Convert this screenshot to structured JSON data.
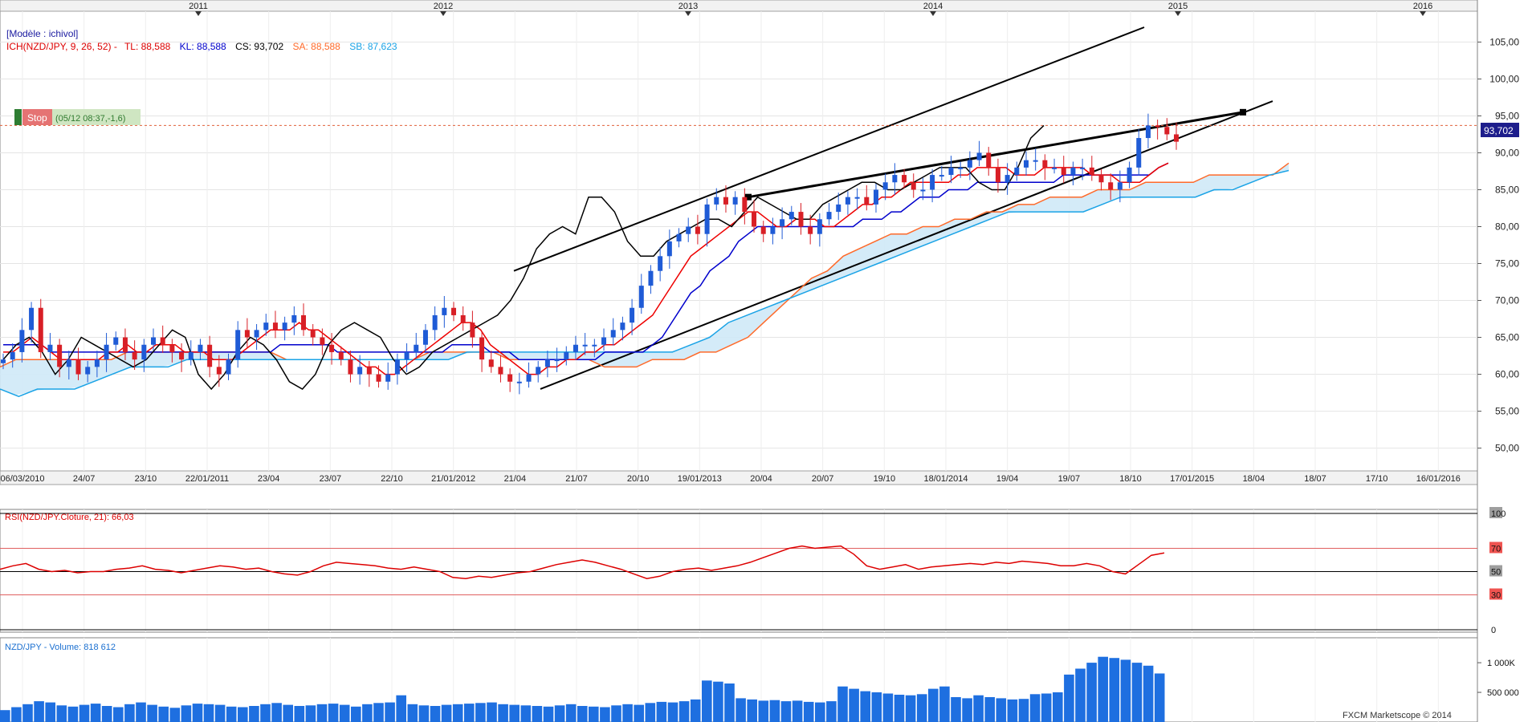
{
  "legend": {
    "model": "[Modèle : ichivol]",
    "ich_prefix": "ICH(NZD/JPY, 9, 26, 52) -",
    "tl": "TL: 88,588",
    "kl": "KL: 88,588",
    "cs": "CS: 93,702",
    "sa": "SA: 88,588",
    "sb": "SB: 87,623"
  },
  "colors": {
    "tl": "#ee0000",
    "kl": "#0000cc",
    "cs": "#000000",
    "sa": "#ff6a2a",
    "sb": "#1aa3e6",
    "cloud": "#cfe9f7",
    "rsi": "#dd0000",
    "volume": "#1e6fe0",
    "up_candle": "#1f5bd6",
    "down_candle": "#d81f26"
  },
  "stop_badge": {
    "label": "Stop",
    "info": "(05/12 08:37,-1,6)"
  },
  "last_price_tag": "93,702",
  "footer": "FXCM Marketscope © 2014",
  "chart_data": [
    {
      "type": "line",
      "subtype": "candlestick-ichimoku",
      "title": "NZD/JPY",
      "xaxis_top_years": [
        "2011",
        "2012",
        "2013",
        "2014",
        "2015",
        "2016"
      ],
      "xaxis_bottom_ticks": [
        "06/03/2010",
        "24/07",
        "23/10",
        "22/01/2011",
        "23/04",
        "23/07",
        "22/10",
        "21/01/2012",
        "21/04",
        "21/07",
        "20/10",
        "19/01/2013",
        "20/04",
        "20/07",
        "19/10",
        "18/01/2014",
        "19/04",
        "19/07",
        "18/10",
        "17/01/2015",
        "18/04",
        "18/07",
        "17/10",
        "16/01/2016"
      ],
      "y_ticks": [
        "50,00",
        "55,00",
        "60,00",
        "65,00",
        "70,00",
        "75,00",
        "80,00",
        "85,00",
        "90,00",
        "95,00",
        "100,00",
        "105,00"
      ],
      "ylim": [
        48,
        107
      ],
      "last_value": 93.702,
      "close_approx": [
        62,
        63,
        66,
        69,
        63,
        64,
        61,
        62,
        60,
        61,
        62,
        64,
        65,
        63,
        62,
        64,
        65,
        64,
        63,
        62,
        63,
        64,
        61,
        60,
        62,
        66,
        65,
        66,
        67,
        66,
        67,
        68,
        66,
        65,
        64,
        63,
        62,
        60,
        61,
        60,
        59,
        60,
        62,
        63,
        64,
        66,
        68,
        69,
        68,
        67,
        65,
        62,
        61,
        60,
        59,
        59,
        60,
        61,
        62,
        62,
        63,
        64,
        64,
        64,
        65,
        66,
        67,
        69,
        72,
        74,
        76,
        78,
        79,
        80,
        79,
        83,
        84,
        83,
        84,
        82,
        80,
        79,
        80,
        81,
        82,
        80,
        79,
        81,
        82,
        83,
        84,
        84,
        83,
        85,
        86,
        87,
        86,
        85,
        85,
        87,
        87,
        88,
        88,
        89,
        90,
        88,
        86,
        87,
        88,
        89,
        89,
        88,
        88,
        87,
        88,
        88,
        87,
        86,
        85,
        86,
        88,
        92,
        93.7,
        93.5,
        92.5,
        91.5
      ],
      "tenkan_approx": [
        63,
        63,
        64,
        65,
        64,
        63,
        62,
        62,
        62,
        62,
        62,
        63,
        63,
        64,
        63,
        63,
        64,
        64,
        64,
        63,
        63,
        63,
        62,
        62,
        62,
        63,
        64,
        65,
        66,
        66,
        66,
        67,
        66,
        66,
        65,
        64,
        63,
        62,
        61,
        61,
        60,
        60,
        61,
        62,
        63,
        64,
        65,
        66,
        67,
        67,
        66,
        64,
        63,
        62,
        61,
        60,
        60,
        61,
        61,
        62,
        62,
        63,
        63,
        64,
        64,
        65,
        66,
        67,
        68,
        70,
        72,
        74,
        76,
        77,
        78,
        79,
        80,
        81,
        82,
        82,
        81,
        80,
        80,
        81,
        81,
        81,
        80,
        80,
        81,
        82,
        83,
        83,
        84,
        84,
        85,
        86,
        86,
        86,
        86,
        86,
        87,
        87,
        88,
        88,
        88,
        88,
        87,
        87,
        87,
        88,
        88,
        88,
        88,
        88,
        87,
        87,
        87,
        86,
        86,
        86,
        87,
        88,
        88.6
      ],
      "kijun_approx": [
        64,
        64,
        64,
        64,
        64,
        63,
        63,
        63,
        63,
        63,
        63,
        63,
        63,
        63,
        63,
        63,
        63,
        63,
        63,
        63,
        63,
        63,
        63,
        63,
        63,
        63,
        63,
        63,
        63,
        64,
        64,
        64,
        64,
        64,
        64,
        63,
        63,
        63,
        63,
        63,
        63,
        63,
        63,
        63,
        63,
        63,
        63,
        64,
        64,
        64,
        64,
        63,
        63,
        63,
        62,
        62,
        62,
        62,
        62,
        62,
        62,
        62,
        62,
        63,
        63,
        63,
        63,
        63,
        64,
        65,
        67,
        69,
        71,
        72,
        74,
        75,
        76,
        78,
        79,
        80,
        80,
        80,
        80,
        80,
        80,
        80,
        80,
        80,
        80,
        80,
        81,
        81,
        81,
        82,
        82,
        83,
        84,
        84,
        84,
        85,
        85,
        85,
        86,
        86,
        86,
        86,
        86,
        86,
        86,
        86,
        86,
        87,
        87,
        87,
        87,
        87,
        87,
        87,
        87,
        87,
        87,
        88,
        88.6
      ],
      "chikou_approx": [
        62,
        64,
        65,
        63,
        60,
        62,
        65,
        64,
        63,
        62,
        61,
        62,
        64,
        66,
        65,
        60,
        58,
        60,
        63,
        65,
        64,
        62,
        59,
        58,
        60,
        64,
        66,
        67,
        66,
        65,
        62,
        60,
        61,
        63,
        64,
        65,
        66,
        67,
        68,
        70,
        73,
        77,
        79,
        80,
        79,
        84,
        84,
        82,
        78,
        76,
        76,
        78,
        79,
        80,
        81,
        81,
        80,
        82,
        84,
        83,
        82,
        81,
        81,
        83,
        84,
        85,
        86,
        86,
        85,
        85,
        86,
        87,
        88,
        88,
        88,
        86,
        85,
        85,
        88,
        92,
        93.7
      ],
      "senkou_a_approx": [
        61,
        62,
        62,
        62,
        62,
        62,
        62,
        62,
        63,
        63,
        63,
        63,
        63,
        63,
        63,
        63,
        63,
        63,
        62,
        62,
        62,
        62,
        62,
        62,
        62,
        62,
        62,
        63,
        63,
        63,
        63,
        63,
        62,
        62,
        62,
        62,
        62,
        62,
        61,
        61,
        61,
        62,
        62,
        62,
        63,
        63,
        64,
        65,
        67,
        69,
        71,
        73,
        74,
        76,
        77,
        78,
        79,
        79,
        80,
        80,
        81,
        81,
        82,
        82,
        83,
        83,
        84,
        84,
        84,
        85,
        85,
        85,
        86,
        86,
        86,
        86,
        87,
        87,
        87,
        87,
        87,
        88.6
      ],
      "senkou_b_approx": [
        58,
        57,
        58,
        58,
        58,
        59,
        60,
        61,
        61,
        61,
        62,
        62,
        62,
        62,
        62,
        62,
        62,
        62,
        62,
        62,
        62,
        62,
        62,
        62,
        62,
        63,
        63,
        63,
        63,
        63,
        63,
        63,
        63,
        63,
        63,
        63,
        63,
        64,
        65,
        67,
        68,
        69,
        70,
        71,
        72,
        73,
        74,
        75,
        76,
        77,
        78,
        79,
        80,
        81,
        82,
        82,
        82,
        82,
        82,
        83,
        84,
        84,
        84,
        84,
        84,
        85,
        85,
        86,
        87,
        87.6
      ]
    },
    {
      "type": "line",
      "title": "RSI(NZD/JPY.Cloture, 21): 66,03",
      "ylim": [
        0,
        100
      ],
      "y_ticks": [
        "0",
        "30",
        "50",
        "70",
        "100"
      ],
      "values_approx": [
        52,
        55,
        57,
        52,
        50,
        51,
        49,
        50,
        50,
        52,
        53,
        55,
        52,
        51,
        49,
        51,
        53,
        55,
        54,
        52,
        53,
        50,
        48,
        47,
        50,
        55,
        58,
        57,
        56,
        55,
        53,
        52,
        54,
        52,
        50,
        45,
        44,
        46,
        45,
        47,
        49,
        50,
        53,
        56,
        58,
        60,
        58,
        55,
        52,
        48,
        44,
        46,
        50,
        52,
        53,
        51,
        53,
        55,
        58,
        62,
        66,
        70,
        72,
        70,
        71,
        72,
        65,
        55,
        52,
        54,
        56,
        52,
        54,
        55,
        56,
        57,
        56,
        58,
        57,
        59,
        58,
        57,
        55,
        55,
        57,
        55,
        50,
        48,
        56,
        64,
        66.03
      ]
    },
    {
      "type": "bar",
      "title": "NZD/JPY - Volume: 818 612",
      "y_ticks": [
        "500 000",
        "1 000K"
      ],
      "ylim": [
        0,
        1150000
      ],
      "values_approx": [
        200000,
        250000,
        300000,
        350000,
        330000,
        280000,
        260000,
        290000,
        310000,
        270000,
        250000,
        300000,
        330000,
        290000,
        260000,
        240000,
        280000,
        310000,
        300000,
        290000,
        260000,
        250000,
        270000,
        300000,
        320000,
        290000,
        270000,
        280000,
        300000,
        310000,
        290000,
        260000,
        300000,
        320000,
        330000,
        450000,
        300000,
        280000,
        270000,
        290000,
        300000,
        310000,
        320000,
        330000,
        300000,
        290000,
        280000,
        270000,
        260000,
        280000,
        300000,
        270000,
        260000,
        250000,
        280000,
        300000,
        290000,
        320000,
        340000,
        330000,
        350000,
        380000,
        700000,
        680000,
        650000,
        400000,
        380000,
        360000,
        370000,
        350000,
        360000,
        340000,
        330000,
        350000,
        600000,
        560000,
        520000,
        500000,
        480000,
        460000,
        450000,
        470000,
        560000,
        600000,
        420000,
        400000,
        450000,
        420000,
        400000,
        380000,
        390000,
        470000,
        480000,
        500000,
        800000,
        900000,
        1000000,
        1100000,
        1080000,
        1050000,
        1000000,
        950000,
        818612
      ]
    }
  ]
}
